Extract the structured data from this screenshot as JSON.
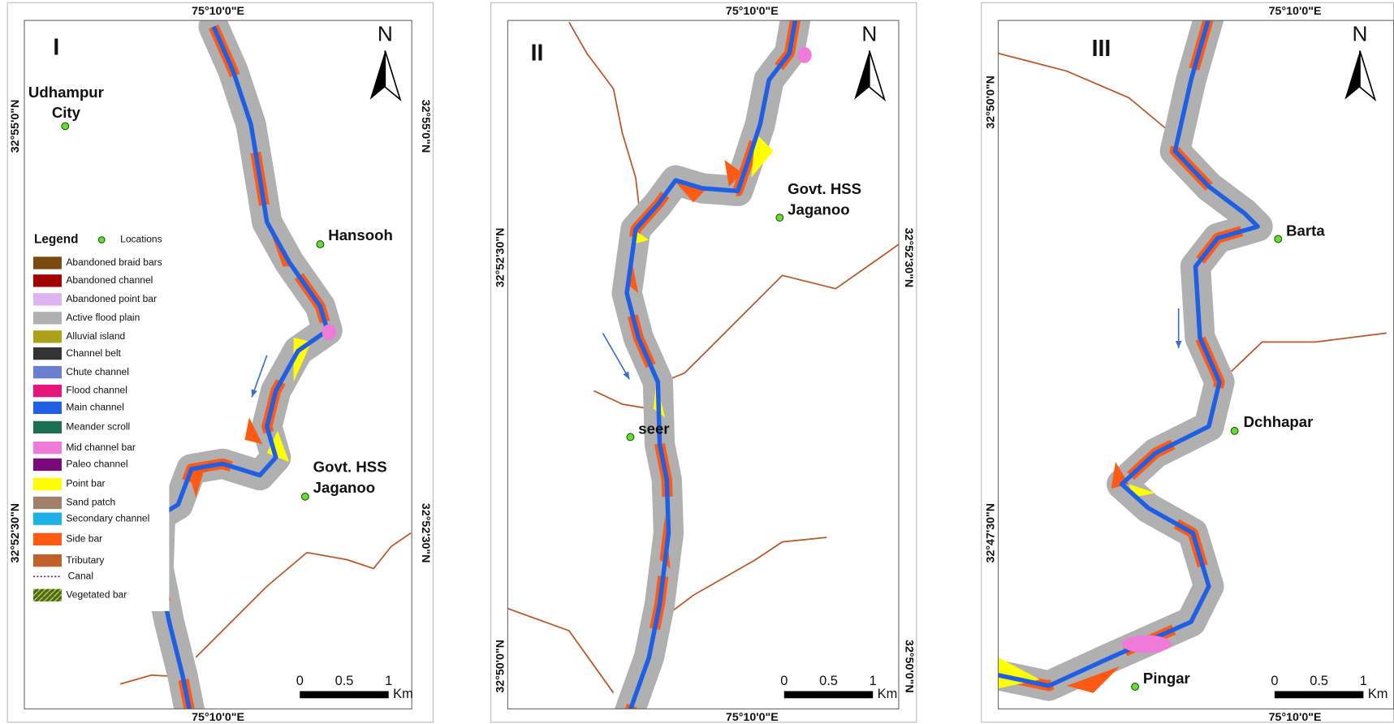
{
  "panels": [
    {
      "id": "I",
      "north": "N",
      "top_label": "75°10'0\"E",
      "bottom_label": "75°10'0\"E",
      "left_labels": [
        "32°55'0\"N",
        "32°52'30\"N"
      ],
      "right_labels": [
        "32°55'0\"N",
        "32°52'30\"N"
      ],
      "locations": [
        {
          "lines": [
            "Udhampur",
            "City"
          ]
        },
        {
          "lines": [
            "Hansooh"
          ]
        },
        {
          "lines": [
            "Govt. HSS",
            "Jaganoo"
          ]
        }
      ],
      "scale": {
        "ticks": [
          "0",
          "0.5",
          "1"
        ],
        "unit": "Km"
      }
    },
    {
      "id": "II",
      "north": "N",
      "top_label": "75°10'0\"E",
      "bottom_label": "75°10'0\"E",
      "left_labels": [
        "32°52'30\"N",
        "32°50'0\"N"
      ],
      "right_labels": [
        "32°52'30\"N",
        "32°50'0\"N"
      ],
      "locations": [
        {
          "lines": [
            "Govt. HSS",
            "Jaganoo"
          ]
        },
        {
          "lines": [
            "seer"
          ]
        }
      ],
      "scale": {
        "ticks": [
          "0",
          "0.5",
          "1"
        ],
        "unit": "Km"
      }
    },
    {
      "id": "III",
      "north": "N",
      "top_label": "75°10'0\"E",
      "bottom_label": "75°10'0\"E",
      "left_labels": [
        "32°50'0\"N",
        "32°47'30\"N"
      ],
      "right_labels": [],
      "locations": [
        {
          "lines": [
            "Barta"
          ]
        },
        {
          "lines": [
            "Dchhapar"
          ]
        },
        {
          "lines": [
            "Pingar"
          ]
        }
      ],
      "scale": {
        "ticks": [
          "0",
          "0.5",
          "1"
        ],
        "unit": "Km"
      }
    }
  ],
  "legend": {
    "title": "Legend",
    "locations_label": "Locations",
    "items": [
      {
        "label": "Abandoned braid bars",
        "color": "#7b4a12"
      },
      {
        "label": "Abandoned channel",
        "color": "#a00000"
      },
      {
        "label": "Abandoned point bar",
        "color": "#dcb4f0"
      },
      {
        "label": "Active flood plain",
        "color": "#b0b0b0"
      },
      {
        "label": "Alluvial island",
        "color": "#aca21a"
      },
      {
        "label": "Channel belt",
        "color": "#333333"
      },
      {
        "label": "Chute channel",
        "color": "#6b7fd0"
      },
      {
        "label": "Flood channel",
        "color": "#e6157a"
      },
      {
        "label": "Main channel",
        "color": "#1e5fe6"
      },
      {
        "label": "Meander scroll",
        "color": "#1a7050"
      },
      {
        "label": "Mid channel bar",
        "color": "#f07ad8"
      },
      {
        "label": "Paleo channel",
        "color": "#7a0a7a"
      },
      {
        "label": "Point bar",
        "color": "#ffff00"
      },
      {
        "label": "Sand patch",
        "color": "#a0806a"
      },
      {
        "label": "Secondary channel",
        "color": "#20b0e8"
      },
      {
        "label": "Side bar",
        "color": "#ff5a14"
      },
      {
        "label": "Tributary",
        "color": "#c0602a"
      },
      {
        "label": "Canal",
        "color": "#8a1a8a"
      },
      {
        "label": "Vegetated bar",
        "color": "#4a6a20"
      }
    ]
  }
}
